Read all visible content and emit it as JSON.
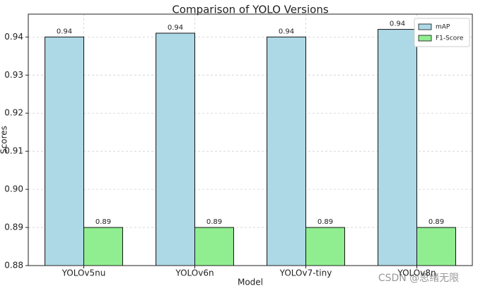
{
  "chart_data": {
    "type": "bar",
    "title": "Comparison of YOLO Versions",
    "xlabel": "Model",
    "ylabel": "Scores",
    "categories": [
      "YOLOv5nu",
      "YOLOv6n",
      "YOLOv7-tiny",
      "YOLOv8n"
    ],
    "series": [
      {
        "name": "mAP",
        "color": "#add8e6",
        "values": [
          0.94,
          0.941,
          0.94,
          0.942
        ],
        "value_labels": [
          "0.94",
          "0.94",
          "0.94",
          "0.94"
        ]
      },
      {
        "name": "F1-Score",
        "color": "#90ee90",
        "values": [
          0.89,
          0.89,
          0.89,
          0.89
        ],
        "value_labels": [
          "0.89",
          "0.89",
          "0.89",
          "0.89"
        ]
      }
    ],
    "ylim": [
      0.88,
      0.946
    ],
    "yticks": [
      0.88,
      0.89,
      {
        "value": 0.9,
        "label": "0.90"
      },
      0.91,
      0.92,
      0.93,
      0.94
    ],
    "grid": true,
    "legend": "upper right",
    "watermark": "CSDN @思绪无限"
  }
}
